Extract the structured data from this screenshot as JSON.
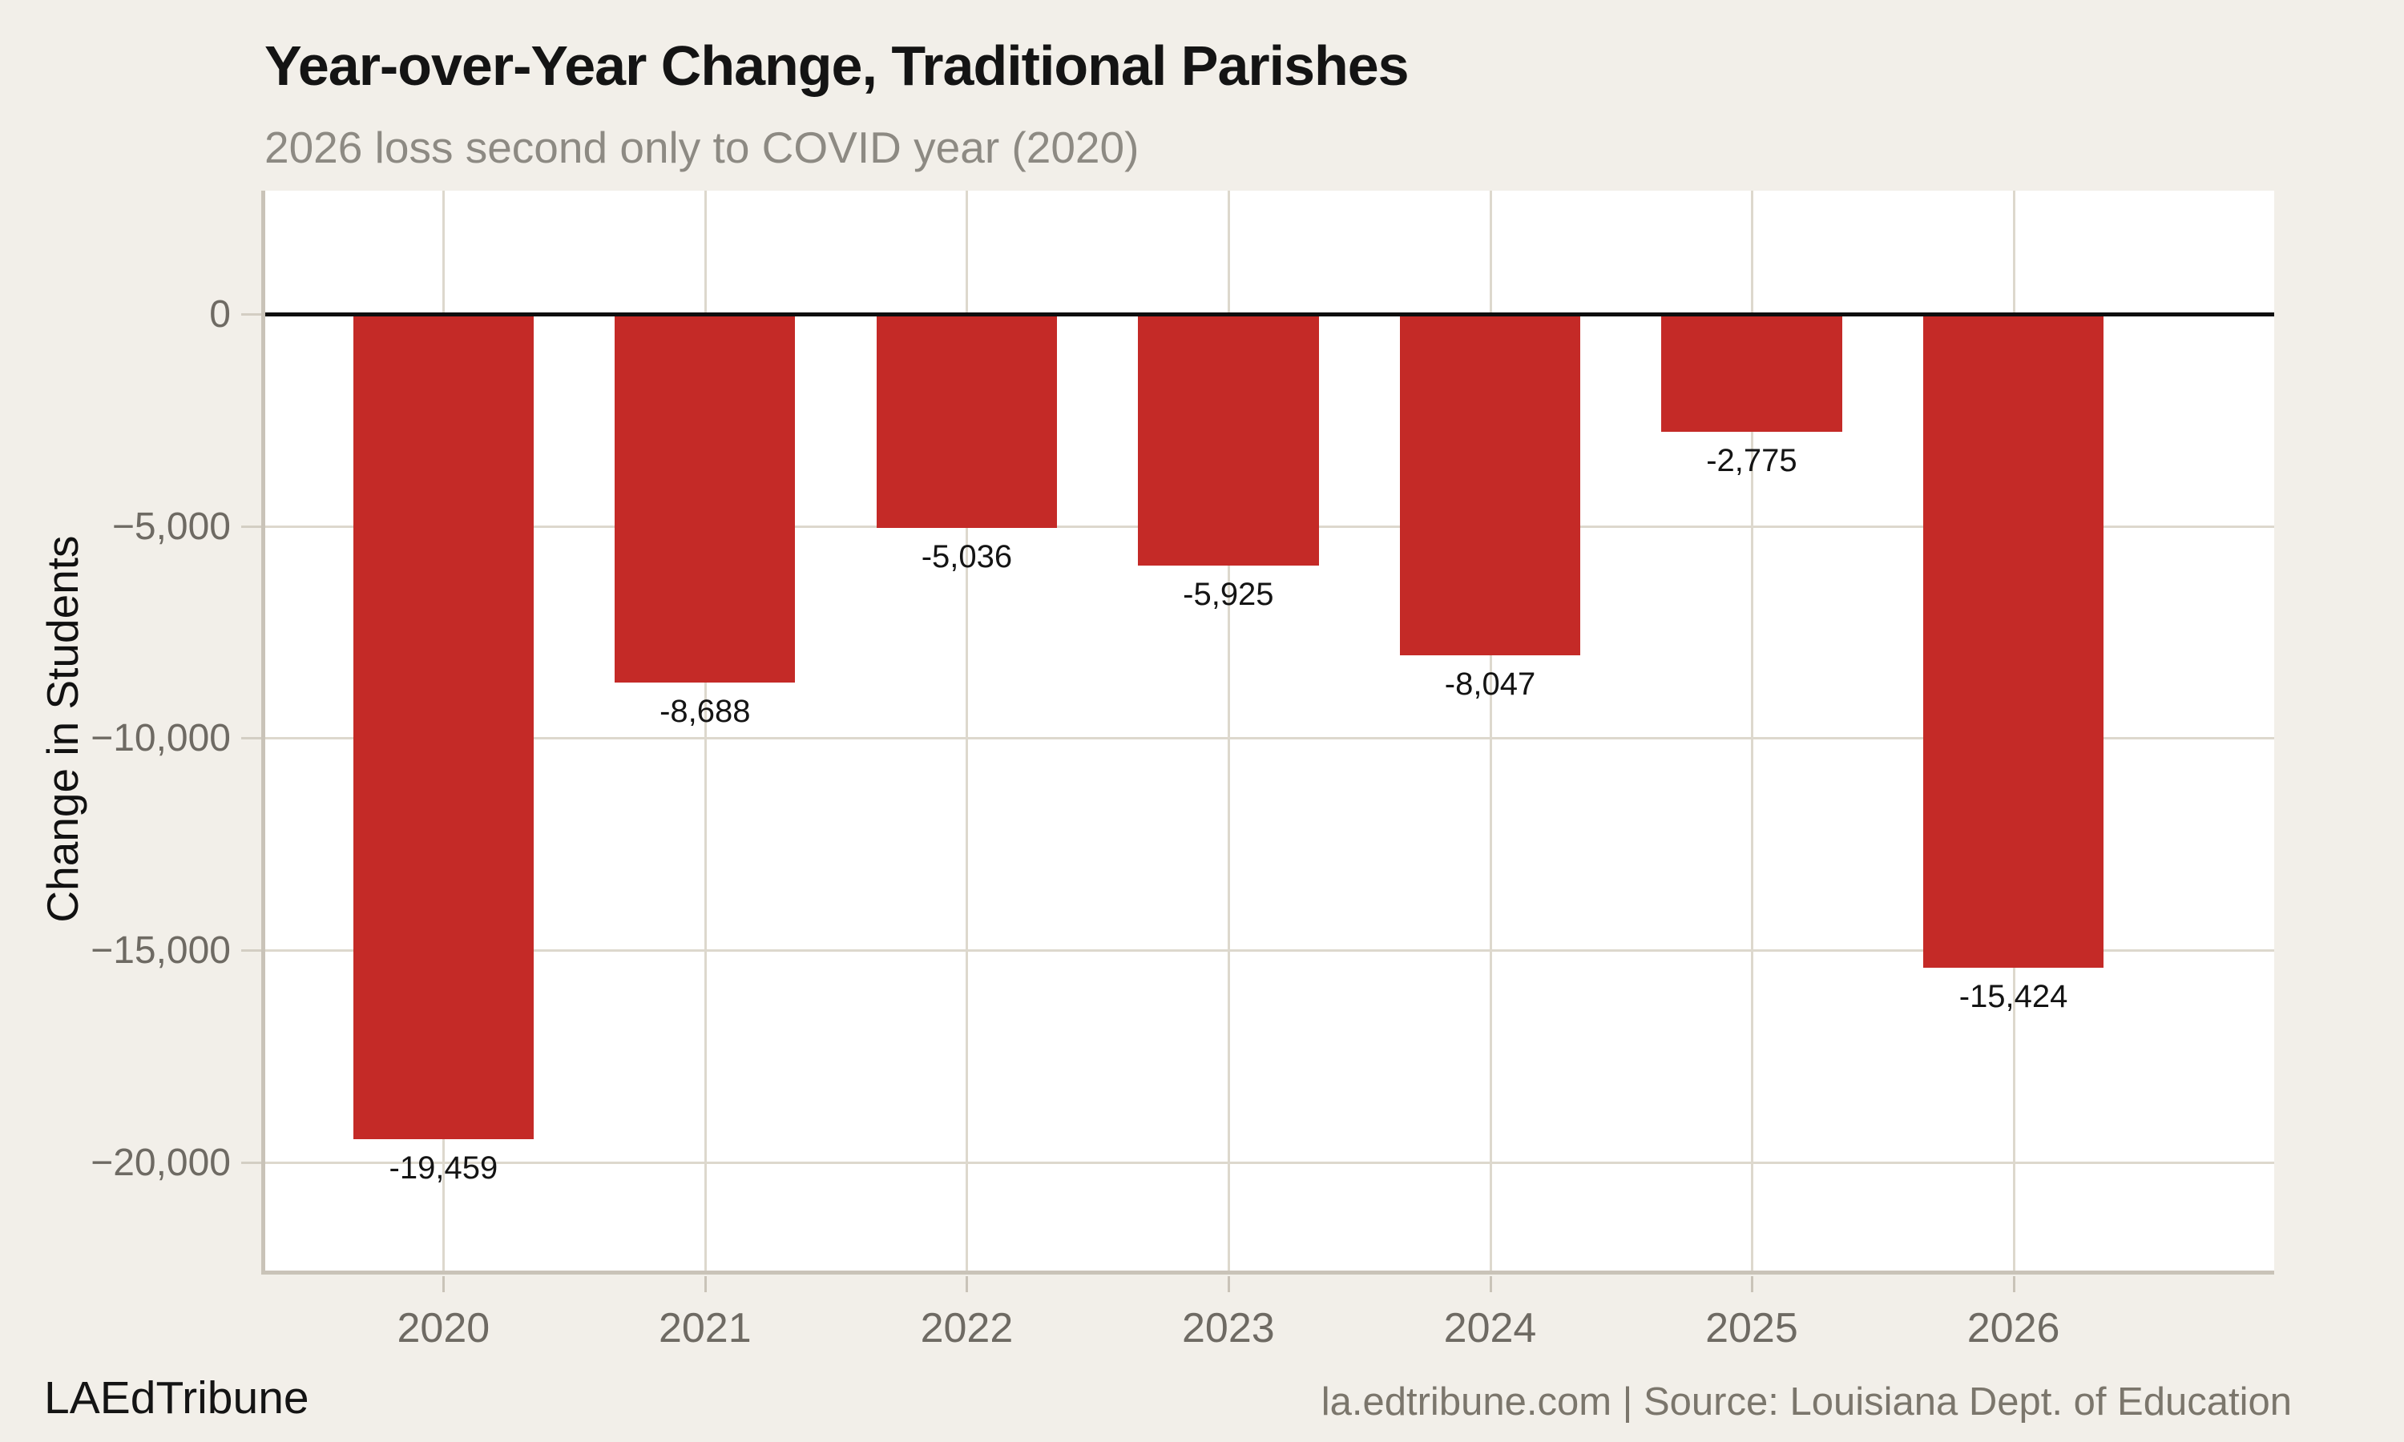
{
  "header": {
    "title": "Year-over-Year Change, Traditional Parishes",
    "subtitle": "2026 loss second only to COVID year (2020)"
  },
  "footer": {
    "brand": "LAEdTribune",
    "source": "la.edtribune.com | Source: Louisiana Dept. of Education"
  },
  "colors": {
    "background": "#F2EFE9",
    "plot_background": "#FFFFFF",
    "bar": "#C42A27",
    "gridline": "#DDD8CD",
    "axis_line": "#C9C3B8",
    "zero_line": "#0E0E0E",
    "tick_label": "#6E6A63",
    "subtitle": "#8D8A83",
    "source_text": "#7B766C"
  },
  "chart_data": {
    "type": "bar",
    "title": "Year-over-Year Change, Traditional Parishes",
    "subtitle": "2026 loss second only to COVID year (2020)",
    "xlabel": "",
    "ylabel": "Change in Students",
    "categories": [
      "2020",
      "2021",
      "2022",
      "2023",
      "2024",
      "2025",
      "2026"
    ],
    "values": [
      -19459,
      -8688,
      -5036,
      -5925,
      -8047,
      -2775,
      -15424
    ],
    "bar_labels": [
      "-19,459",
      "-8,688",
      "-5,036",
      "-5,925",
      "-8,047",
      "-2,775",
      "-15,424"
    ],
    "yticks": [
      {
        "value": 0,
        "label": "0"
      },
      {
        "value": -5000,
        "label": "−5,000"
      },
      {
        "value": -10000,
        "label": "−10,000"
      },
      {
        "value": -15000,
        "label": "−15,000"
      },
      {
        "value": -20000,
        "label": "−20,000"
      }
    ],
    "ylim": [
      -22560,
      2910
    ],
    "grid": true,
    "zero_line": true,
    "legend": "none",
    "bar_color": "#C42A27"
  }
}
